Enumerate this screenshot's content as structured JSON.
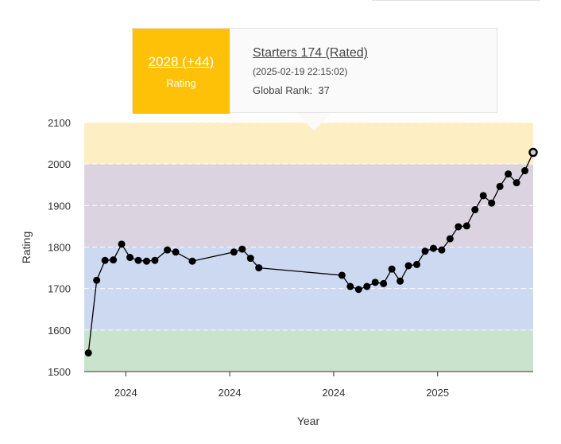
{
  "chart_data": {
    "type": "line",
    "xlabel": "Year",
    "ylabel": "Rating",
    "ylim": [
      1500,
      2100
    ],
    "yticks": [
      1500,
      1600,
      1700,
      1800,
      1900,
      2000,
      2100
    ],
    "xticks": [
      {
        "x": 5,
        "label": "2024"
      },
      {
        "x": 17.5,
        "label": "2024"
      },
      {
        "x": 30,
        "label": "2024"
      },
      {
        "x": 42.5,
        "label": "2025"
      }
    ],
    "xlim": [
      0,
      54
    ],
    "bands": [
      {
        "from": 1500,
        "to": 1600,
        "color": "#c9e3cc"
      },
      {
        "from": 1600,
        "to": 1800,
        "color": "#cdd9f1"
      },
      {
        "from": 1800,
        "to": 2000,
        "color": "#dcd3e0"
      },
      {
        "from": 2000,
        "to": 2100,
        "color": "#fdefc3"
      }
    ],
    "line_color": "#000000",
    "highlight_color": "#cfcfcf",
    "series": [
      {
        "name": "Rating",
        "x": [
          0.5,
          1.5,
          2.5,
          3.5,
          4.5,
          5.5,
          6.5,
          7.5,
          8.5,
          10,
          11,
          13,
          18,
          19,
          20,
          21,
          31,
          32,
          33,
          34,
          35,
          36,
          37,
          38,
          39,
          40,
          41,
          42,
          43,
          44,
          45,
          46,
          47,
          48,
          49,
          50,
          51,
          52,
          53,
          54
        ],
        "values": [
          1545,
          1720,
          1768,
          1769,
          1807,
          1775,
          1768,
          1766,
          1768,
          1793,
          1788,
          1766,
          1788,
          1795,
          1773,
          1750,
          1732,
          1705,
          1698,
          1705,
          1715,
          1712,
          1747,
          1718,
          1755,
          1758,
          1790,
          1797,
          1793,
          1820,
          1849,
          1851,
          1890,
          1924,
          1906,
          1946,
          1976,
          1955,
          1984,
          2028
        ]
      }
    ]
  },
  "tooltip": {
    "rating": "2028 (+44)",
    "rating_label": "Rating",
    "contest": "Starters 174 (Rated)",
    "date": "(2025-02-19 22:15:02)",
    "rank_label": "Global Rank:",
    "rank_value": "37"
  }
}
